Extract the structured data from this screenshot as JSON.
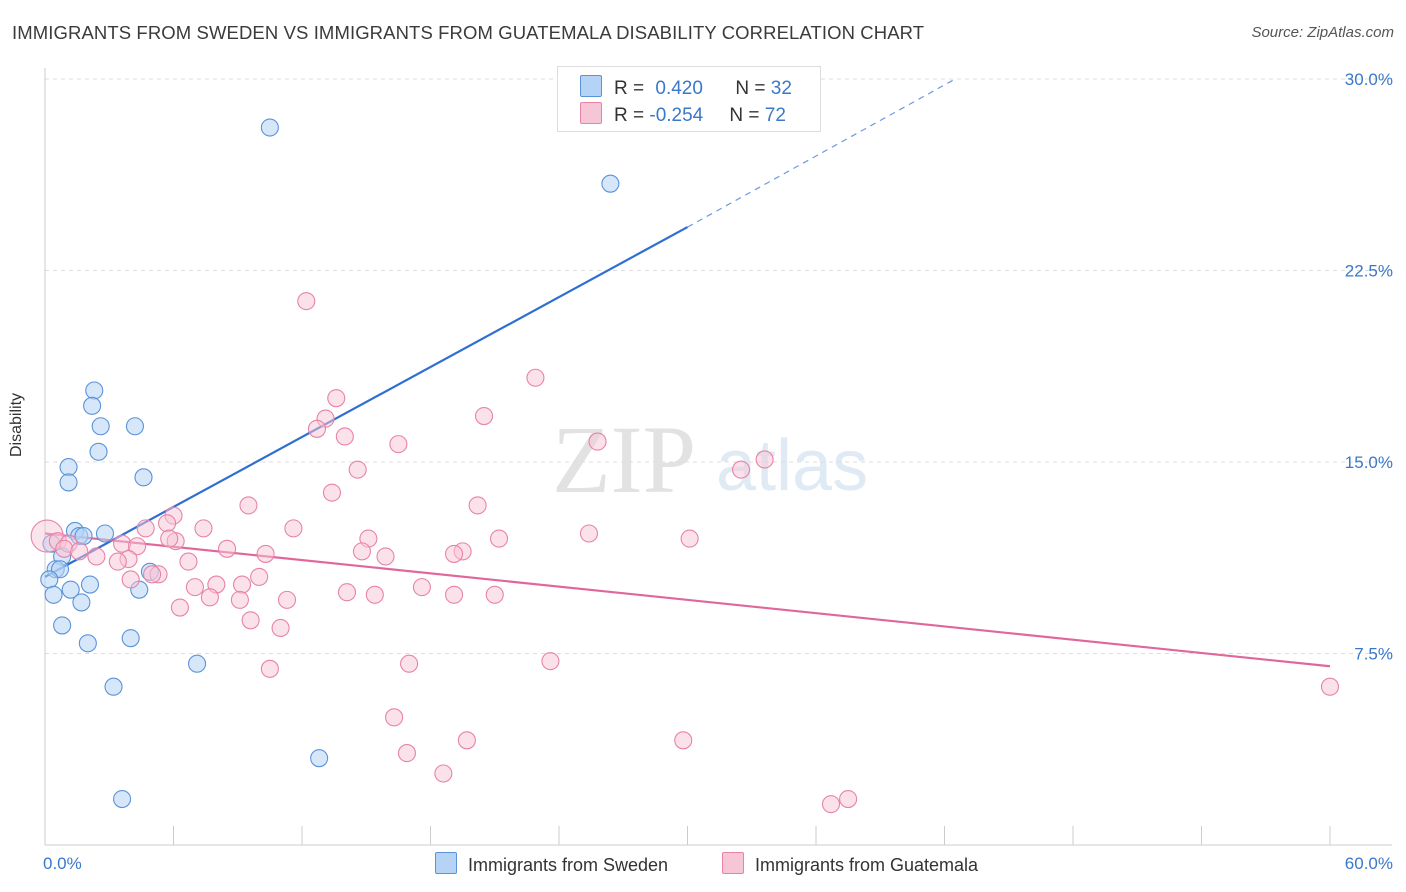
{
  "title": "IMMIGRANTS FROM SWEDEN VS IMMIGRANTS FROM GUATEMALA DISABILITY CORRELATION CHART",
  "source": "Source: ZipAtlas.com",
  "watermark": {
    "zip": "ZIP",
    "atlas": "atlas"
  },
  "legend": {
    "rows": [
      {
        "r_label": "R = ",
        "r_value": "0.420",
        "n_label": "N = ",
        "n_value": "32"
      },
      {
        "r_label": "R = ",
        "r_value": "-0.254",
        "n_label": "N = ",
        "n_value": "72"
      }
    ]
  },
  "colors": {
    "sweden_fill": "#b5d3f5",
    "sweden_stroke": "#5b93d8",
    "sweden_line": "#2f6fd1",
    "guatemala_fill": "#f7c6d6",
    "guatemala_stroke": "#e883a6",
    "guatemala_line": "#e0679a",
    "axis_label": "#3a78c9",
    "grid": "#dddddd"
  },
  "chart_data": {
    "type": "scatter",
    "title": "IMMIGRANTS FROM SWEDEN VS IMMIGRANTS FROM GUATEMALA DISABILITY CORRELATION CHART",
    "xlabel": "",
    "ylabel": "Disability",
    "xlim": [
      0,
      60
    ],
    "ylim": [
      0,
      30
    ],
    "x_tick_labels": [
      "0.0%",
      "60.0%"
    ],
    "y_ticks": [
      7.5,
      15.0,
      22.5,
      30.0
    ],
    "y_tick_labels": [
      "7.5%",
      "15.0%",
      "22.5%",
      "30.0%"
    ],
    "grid": true,
    "legend_position": "top-center",
    "series": [
      {
        "name": "Immigrants from Sweden",
        "r": 0.42,
        "n": 32,
        "trend": {
          "x": [
            0,
            30
          ],
          "y": [
            10.5,
            24.2
          ],
          "dashed_to": [
            42.5,
            30.0
          ]
        },
        "points": [
          [
            10.5,
            28.1
          ],
          [
            26.4,
            25.9
          ],
          [
            2.3,
            17.8
          ],
          [
            2.2,
            17.2
          ],
          [
            2.6,
            16.4
          ],
          [
            4.2,
            16.4
          ],
          [
            2.5,
            15.4
          ],
          [
            1.1,
            14.8
          ],
          [
            4.6,
            14.4
          ],
          [
            1.1,
            14.2
          ],
          [
            1.4,
            12.3
          ],
          [
            2.8,
            12.2
          ],
          [
            1.6,
            12.1
          ],
          [
            1.8,
            12.1
          ],
          [
            0.8,
            11.3
          ],
          [
            0.3,
            11.8
          ],
          [
            0.5,
            10.8
          ],
          [
            0.7,
            10.8
          ],
          [
            4.9,
            10.7
          ],
          [
            0.2,
            10.4
          ],
          [
            2.1,
            10.2
          ],
          [
            1.2,
            10.0
          ],
          [
            4.4,
            10.0
          ],
          [
            0.4,
            9.8
          ],
          [
            1.7,
            9.5
          ],
          [
            0.8,
            8.6
          ],
          [
            4.0,
            8.1
          ],
          [
            2.0,
            7.9
          ],
          [
            7.1,
            7.1
          ],
          [
            3.2,
            6.2
          ],
          [
            12.8,
            3.4
          ],
          [
            3.6,
            1.8
          ]
        ]
      },
      {
        "name": "Immigrants from Guatemala",
        "r": -0.254,
        "n": 72,
        "trend": {
          "x": [
            0,
            60
          ],
          "y": [
            12.2,
            7.0
          ]
        },
        "points": [
          [
            0.1,
            12.1
          ],
          [
            12.2,
            21.3
          ],
          [
            22.9,
            18.3
          ],
          [
            13.6,
            17.5
          ],
          [
            20.5,
            16.8
          ],
          [
            13.1,
            16.7
          ],
          [
            12.7,
            16.3
          ],
          [
            14.0,
            16.0
          ],
          [
            16.5,
            15.7
          ],
          [
            25.8,
            15.8
          ],
          [
            33.6,
            15.1
          ],
          [
            32.5,
            14.7
          ],
          [
            14.6,
            14.7
          ],
          [
            13.4,
            13.8
          ],
          [
            20.2,
            13.3
          ],
          [
            9.5,
            13.3
          ],
          [
            6.0,
            12.9
          ],
          [
            5.7,
            12.6
          ],
          [
            11.6,
            12.4
          ],
          [
            7.4,
            12.4
          ],
          [
            4.7,
            12.4
          ],
          [
            15.1,
            12.0
          ],
          [
            30.1,
            12.0
          ],
          [
            6.1,
            11.9
          ],
          [
            0.6,
            11.9
          ],
          [
            1.1,
            11.8
          ],
          [
            3.6,
            11.8
          ],
          [
            4.3,
            11.7
          ],
          [
            8.5,
            11.6
          ],
          [
            14.8,
            11.5
          ],
          [
            19.5,
            11.5
          ],
          [
            19.1,
            11.4
          ],
          [
            10.3,
            11.4
          ],
          [
            2.4,
            11.3
          ],
          [
            0.9,
            11.6
          ],
          [
            1.6,
            11.5
          ],
          [
            3.9,
            11.2
          ],
          [
            6.7,
            11.1
          ],
          [
            3.4,
            11.1
          ],
          [
            5.3,
            10.6
          ],
          [
            5.0,
            10.6
          ],
          [
            4.0,
            10.4
          ],
          [
            10.0,
            10.5
          ],
          [
            7.0,
            10.1
          ],
          [
            9.2,
            10.2
          ],
          [
            8.0,
            10.2
          ],
          [
            17.6,
            10.1
          ],
          [
            14.1,
            9.9
          ],
          [
            19.1,
            9.8
          ],
          [
            21.0,
            9.8
          ],
          [
            7.7,
            9.7
          ],
          [
            9.1,
            9.6
          ],
          [
            11.3,
            9.6
          ],
          [
            15.4,
            9.8
          ],
          [
            6.3,
            9.3
          ],
          [
            9.6,
            8.8
          ],
          [
            11.0,
            8.5
          ],
          [
            17.0,
            7.1
          ],
          [
            23.6,
            7.2
          ],
          [
            10.5,
            6.9
          ],
          [
            60.0,
            6.2
          ],
          [
            16.3,
            5.0
          ],
          [
            16.9,
            3.6
          ],
          [
            19.7,
            4.1
          ],
          [
            29.8,
            4.1
          ],
          [
            18.6,
            2.8
          ],
          [
            36.7,
            1.6
          ],
          [
            37.5,
            1.8
          ],
          [
            21.2,
            12.0
          ],
          [
            25.4,
            12.2
          ],
          [
            15.9,
            11.3
          ],
          [
            5.8,
            12.0
          ]
        ]
      }
    ]
  }
}
